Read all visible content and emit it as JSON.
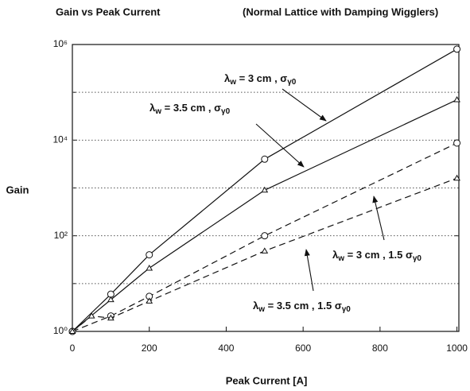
{
  "chart_data": {
    "type": "line",
    "title": "Gain vs Peak Current",
    "subtitle": "(Normal Lattice with Damping Wigglers)",
    "x_label": "Peak Current [A]",
    "y_label": "Gain",
    "log_y": true,
    "grid": true,
    "xlim": [
      0,
      1005
    ],
    "ylim": [
      1,
      1000000
    ],
    "xticks": [
      0,
      200,
      400,
      600,
      800,
      1000
    ],
    "yticks": [
      {
        "value": 1,
        "label": "10⁰"
      },
      {
        "value": 100,
        "label": "10²"
      },
      {
        "value": 10000,
        "label": "10⁴"
      },
      {
        "value": 1000000,
        "label": "10⁶"
      }
    ],
    "yminor_ticks": [
      10,
      1000,
      100000
    ],
    "series": [
      {
        "label": [
          "λ",
          "w",
          " = 3 cm , σ",
          "γ0"
        ],
        "color": "#111",
        "dash": false,
        "marker": "circle",
        "x": [
          0,
          100,
          200,
          500,
          1000
        ],
        "values": [
          1,
          6,
          40,
          4000,
          800000
        ]
      },
      {
        "label": [
          "λ",
          "w",
          " = 3.5 cm , σ",
          "γ0"
        ],
        "color": "#111",
        "dash": false,
        "marker": "triangle",
        "x": [
          0,
          100,
          200,
          500,
          1000
        ],
        "values": [
          1,
          4.6,
          21,
          900,
          70000
        ]
      },
      {
        "label": [
          "λ",
          "w",
          " = 3 cm , 1.5 σ",
          "γ0"
        ],
        "color": "#111",
        "dash": true,
        "marker": "circle",
        "x": [
          0,
          100,
          200,
          500,
          1000
        ],
        "values": [
          1,
          2.1,
          5.4,
          100,
          8700
        ]
      },
      {
        "label": [
          "λ",
          "w",
          " = 3.5 cm , 1.5 σ",
          "γ0"
        ],
        "color": "#111",
        "dash": true,
        "marker": "triangle",
        "x": [
          0,
          50,
          100,
          200,
          500,
          1000
        ],
        "values": [
          1,
          2.1,
          1.9,
          4.3,
          48,
          1600
        ]
      }
    ]
  }
}
